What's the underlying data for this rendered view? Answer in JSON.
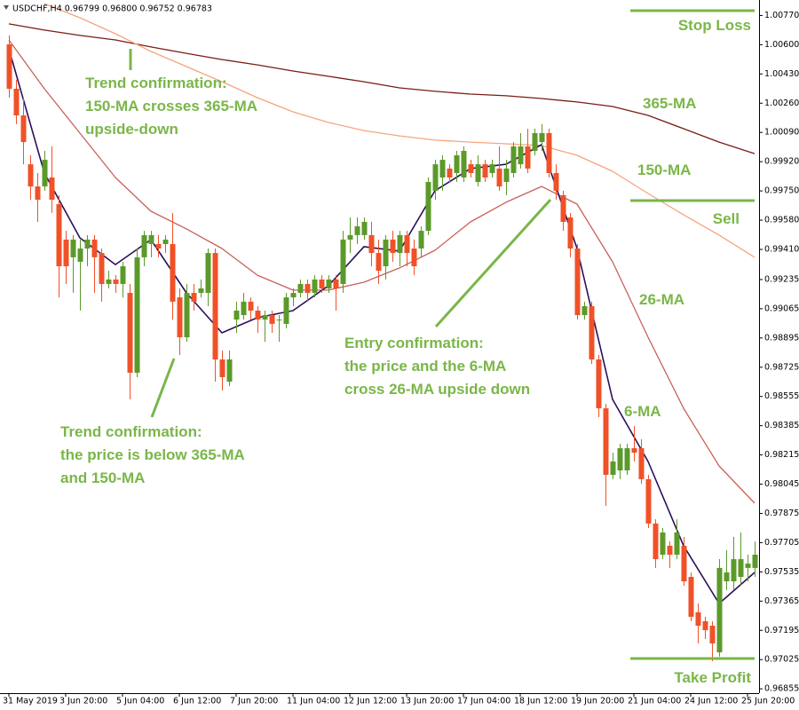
{
  "chart_data": {
    "type": "candlestick",
    "title": "USDCHF,H4  0.96799 0.96800 0.96752 0.96783",
    "xlim": [
      -1.25,
      105.625
    ],
    "xticks": [
      {
        "value": 0,
        "label": "31 May 2019"
      },
      {
        "value": 8,
        "label": "3 Jun 20:00"
      },
      {
        "value": 16,
        "label": "5 Jun 04:00"
      },
      {
        "value": 24,
        "label": "6 Jun 12:00"
      },
      {
        "value": 32,
        "label": "7 Jun 20:00"
      },
      {
        "value": 40,
        "label": "11 Jun 04:00"
      },
      {
        "value": 48,
        "label": "12 Jun 12:00"
      },
      {
        "value": 56,
        "label": "13 Jun 20:00"
      },
      {
        "value": 64,
        "label": "17 Jun 04:00"
      },
      {
        "value": 72,
        "label": "18 Jun 12:00"
      },
      {
        "value": 80,
        "label": "19 Jun 20:00"
      },
      {
        "value": 88,
        "label": "21 Jun 04:00"
      },
      {
        "value": 96,
        "label": "24 Jun 12:00"
      },
      {
        "value": 104,
        "label": "25 Jun 20:00"
      }
    ],
    "ylim": [
      0.9683,
      1.0086
    ],
    "yticks": [
      {
        "value": 1.0077,
        "label": "1.00770"
      },
      {
        "value": 1.006,
        "label": "1.00600"
      },
      {
        "value": 1.0043,
        "label": "1.00430"
      },
      {
        "value": 1.0026,
        "label": "1.00260"
      },
      {
        "value": 1.0009,
        "label": "1.00090"
      },
      {
        "value": 0.9992,
        "label": "0.99920"
      },
      {
        "value": 0.9975,
        "label": "0.99750"
      },
      {
        "value": 0.9958,
        "label": "0.99580"
      },
      {
        "value": 0.9941,
        "label": "0.99410"
      },
      0.99235,
      0.99065,
      0.98895,
      0.98725,
      0.98555,
      0.98385,
      0.98215,
      0.98045,
      0.97875,
      0.97705,
      0.97535,
      0.97365,
      0.97195,
      0.97025,
      0.96855
    ],
    "up_color": "#5b9a2a",
    "down_color": "#f05128",
    "open": [
      1.00602,
      1.00344,
      1.00189,
      0.99905,
      0.99776,
      0.99776,
      0.99828,
      0.99673,
      0.99467,
      0.99364,
      0.99338,
      0.99415,
      0.99467,
      0.99389,
      0.99209,
      0.99235,
      0.99209,
      0.99157,
      0.98693,
      0.99364,
      0.99441,
      0.99441,
      0.99441,
      0.99441,
      0.99131,
      0.98899,
      0.99157,
      0.99157,
      0.99157,
      0.99389,
      0.9877,
      0.98641,
      0.99002,
      0.99028,
      0.99106,
      0.99054,
      0.99002,
      0.99028,
      0.99002,
      0.98977,
      0.99131,
      0.99157,
      0.99209,
      0.99157,
      0.99235,
      0.99183,
      0.99235,
      0.99209,
      0.99467,
      0.99493,
      0.99493,
      0.99493,
      0.99389,
      0.99312,
      0.99467,
      0.99389,
      0.99493,
      0.99415,
      0.99415,
      0.99518,
      0.99751,
      0.99828,
      0.9988,
      0.99854,
      0.99828,
      0.99905,
      0.99802,
      0.99905,
      0.99854,
      0.9988,
      0.99802,
      0.99854,
      0.99905,
      1.00009,
      0.99983,
      1.00034,
      1.00086,
      0.99854,
      0.99725,
      0.99596,
      0.99415,
      0.99028,
      0.9908,
      0.9877,
      0.98486,
      0.98099,
      0.98125,
      0.98125,
      0.98254,
      0.98254,
      0.98074,
      0.97816,
      0.97635,
      0.97687,
      0.97635,
      0.97687,
      0.97506,
      0.973,
      0.97248,
      0.97222,
      0.97067,
      0.9748,
      0.9748,
      0.97506,
      0.97558,
      0.97558
    ],
    "high": [
      1.00654,
      1.00396,
      1.00292,
      0.99957,
      0.99854,
      0.99983,
      1.00009,
      0.99725,
      0.99518,
      0.99493,
      0.99467,
      0.99493,
      0.99493,
      0.99415,
      0.99286,
      0.9926,
      0.99338,
      0.99209,
      0.99415,
      0.99518,
      0.99518,
      0.99493,
      0.99493,
      0.99622,
      0.99183,
      0.99209,
      0.99209,
      0.99235,
      0.99415,
      0.99415,
      0.98822,
      0.98822,
      0.99106,
      0.99157,
      0.99131,
      0.9908,
      0.99054,
      0.99054,
      0.99028,
      0.99157,
      0.99183,
      0.99235,
      0.99235,
      0.9926,
      0.9926,
      0.9926,
      0.9926,
      0.99518,
      0.99596,
      0.99596,
      0.99596,
      0.9957,
      0.99467,
      0.99493,
      0.99518,
      0.99518,
      0.99518,
      0.99467,
      0.99544,
      0.99828,
      0.99931,
      0.99957,
      0.99905,
      0.99983,
      1.00009,
      0.99931,
      0.99957,
      0.99931,
      0.99931,
      1.00009,
      0.99931,
      1.00034,
      1.00086,
      1.00112,
      1.00112,
      1.00138,
      1.00112,
      0.99905,
      0.99751,
      0.99622,
      0.99441,
      0.99106,
      0.99106,
      0.98796,
      0.98512,
      0.98228,
      0.9828,
      0.9828,
      0.98383,
      0.98306,
      0.98099,
      0.97841,
      0.9779,
      0.97712,
      0.97841,
      0.97738,
      0.97532,
      0.97351,
      0.97274,
      0.97248,
      0.97609,
      0.97661,
      0.97738,
      0.97764,
      0.97635,
      0.97712
    ],
    "low": [
      1.00292,
      1.00138,
      0.99905,
      0.99699,
      0.9957,
      0.99751,
      0.99622,
      0.99131,
      0.99209,
      0.99157,
      0.99054,
      0.99312,
      0.99157,
      0.99106,
      0.99183,
      0.99157,
      0.99131,
      0.98538,
      0.98667,
      0.99312,
      0.99364,
      0.99364,
      0.99389,
      0.99002,
      0.98796,
      0.98873,
      0.99054,
      0.99131,
      0.9908,
      0.98641,
      0.9859,
      0.98615,
      0.98925,
      0.99002,
      0.99002,
      0.98925,
      0.98873,
      0.98925,
      0.98873,
      0.98951,
      0.9908,
      0.99131,
      0.99106,
      0.99131,
      0.99157,
      0.99157,
      0.99054,
      0.99157,
      0.99389,
      0.99441,
      0.99467,
      0.99312,
      0.99209,
      0.99235,
      0.99338,
      0.99312,
      0.99312,
      0.9926,
      0.99364,
      0.99493,
      0.99699,
      0.99751,
      0.99802,
      0.99802,
      0.99802,
      0.99828,
      0.99776,
      0.99802,
      0.99828,
      0.99751,
      0.99725,
      0.99828,
      0.9988,
      0.99854,
      0.99957,
      0.99983,
      0.99828,
      0.99699,
      0.99518,
      0.99364,
      0.99002,
      0.99002,
      0.98744,
      0.98435,
      0.97919,
      0.98074,
      0.98074,
      0.98099,
      0.98177,
      0.98048,
      0.9779,
      0.97558,
      0.97609,
      0.97558,
      0.97609,
      0.97454,
      0.97248,
      0.97119,
      0.97145,
      0.97016,
      0.97042,
      0.97429,
      0.97429,
      0.97454,
      0.9748,
      0.97506
    ],
    "close": [
      1.00344,
      1.00189,
      1.00034,
      0.99776,
      0.99699,
      0.99931,
      0.99699,
      0.99312,
      0.99312,
      0.99467,
      0.99415,
      0.99467,
      0.99364,
      0.99209,
      0.99235,
      0.99209,
      0.99312,
      0.98693,
      0.99364,
      0.99493,
      0.99493,
      0.99415,
      0.99467,
      0.99106,
      0.98899,
      0.99157,
      0.99106,
      0.99183,
      0.99389,
      0.9877,
      0.98667,
      0.9877,
      0.99054,
      0.99106,
      0.99054,
      0.99002,
      0.99028,
      0.98977,
      0.99002,
      0.99131,
      0.99157,
      0.99209,
      0.99157,
      0.99235,
      0.99183,
      0.99235,
      0.99183,
      0.99467,
      0.99493,
      0.99544,
      0.9957,
      0.99389,
      0.99286,
      0.99467,
      0.99389,
      0.99493,
      0.99389,
      0.99312,
      0.99518,
      0.99802,
      0.99905,
      0.99931,
      0.99828,
      0.99957,
      0.99983,
      0.99854,
      0.99905,
      0.99828,
      0.99905,
      0.99776,
      0.9988,
      1.00009,
      1.00009,
      0.9988,
      1.00086,
      1.00086,
      0.99854,
      0.99751,
      0.9957,
      0.99415,
      0.99028,
      0.9908,
      0.9877,
      0.98486,
      0.98099,
      0.98177,
      0.98254,
      0.98254,
      0.98228,
      0.98074,
      0.97816,
      0.97609,
      0.97764,
      0.97635,
      0.97764,
      0.9748,
      0.97274,
      0.97222,
      0.97196,
      0.97119,
      0.97558,
      0.97532,
      0.97609,
      0.97609,
      0.97583,
      0.97635
    ],
    "series": [
      {
        "name": "365-MA",
        "color": "#7a1c16",
        "x": [
          0,
          5,
          10,
          15,
          20,
          25,
          30,
          35,
          40,
          45,
          50,
          55,
          60,
          65,
          70,
          75,
          80,
          85,
          90,
          95,
          100,
          105
        ],
        "values": [
          1.00721,
          1.00685,
          1.00654,
          1.00628,
          1.00587,
          1.0055,
          1.00514,
          1.00483,
          1.00447,
          1.00416,
          1.00385,
          1.00349,
          1.00329,
          1.00313,
          1.00303,
          1.00287,
          1.00267,
          1.00241,
          1.00189,
          1.00112,
          1.00034,
          0.99967
        ]
      },
      {
        "name": "150-MA",
        "color": "#f5a57e",
        "x": [
          5,
          10,
          15,
          20,
          25,
          30,
          35,
          40,
          45,
          50,
          55,
          60,
          65,
          70,
          75,
          80,
          85,
          90,
          95,
          100,
          105
        ],
        "values": [
          1.00839,
          1.00757,
          1.00664,
          1.00561,
          1.00473,
          1.00385,
          1.00292,
          1.0021,
          1.00148,
          1.00101,
          1.0007,
          1.00045,
          1.00034,
          1.00024,
          1.00014,
          0.99957,
          0.99864,
          0.99735,
          0.99611,
          0.99493,
          0.99364
        ]
      },
      {
        "name": "26-MA",
        "color": "#c8625a",
        "x": [
          0,
          5,
          10,
          15,
          20,
          25,
          30,
          35,
          40,
          45,
          50,
          55,
          60,
          65,
          70,
          75,
          80,
          85,
          90,
          95,
          100,
          105
        ],
        "values": [
          1.00628,
          1.00344,
          1.00086,
          0.99828,
          0.99632,
          0.99529,
          0.99415,
          0.9926,
          0.99173,
          0.99173,
          0.99219,
          0.99302,
          0.99405,
          0.9957,
          0.99684,
          0.99776,
          0.99673,
          0.99338,
          0.98899,
          0.98486,
          0.98151,
          0.97934
        ]
      },
      {
        "name": "6-MA",
        "color": "#2b0f5c",
        "x": [
          0,
          5,
          10,
          15,
          20,
          25,
          30,
          35,
          40,
          45,
          50,
          55,
          60,
          65,
          70,
          75,
          80,
          85,
          90,
          95,
          100,
          105
        ],
        "values": [
          1.00576,
          0.99854,
          0.99477,
          0.99322,
          0.99467,
          0.99157,
          0.98925,
          0.99013,
          0.99054,
          0.99199,
          0.99426,
          0.994,
          0.99751,
          0.9988,
          0.99905,
          1.00019,
          0.99415,
          0.98538,
          0.98177,
          0.97687,
          0.97351,
          0.97532
        ]
      }
    ],
    "level_color": "#7ab648",
    "levels": [
      {
        "label": "Stop Loss",
        "value": 1.00798
      },
      {
        "label": "Sell",
        "value": 0.99694
      },
      {
        "label": "Take Profit",
        "value": 0.97031
      }
    ],
    "annotations": [
      {
        "lines": [
          "Trend confirmation:",
          "150-MA crosses 365-MA",
          "upside-down"
        ]
      },
      {
        "lines": [
          "Trend confirmation:",
          "the price is below 365-MA",
          "and 150-MA"
        ]
      },
      {
        "lines": [
          "Entry confirmation:",
          "the price and the 6-MA",
          "cross 26-MA upside down"
        ]
      }
    ]
  }
}
